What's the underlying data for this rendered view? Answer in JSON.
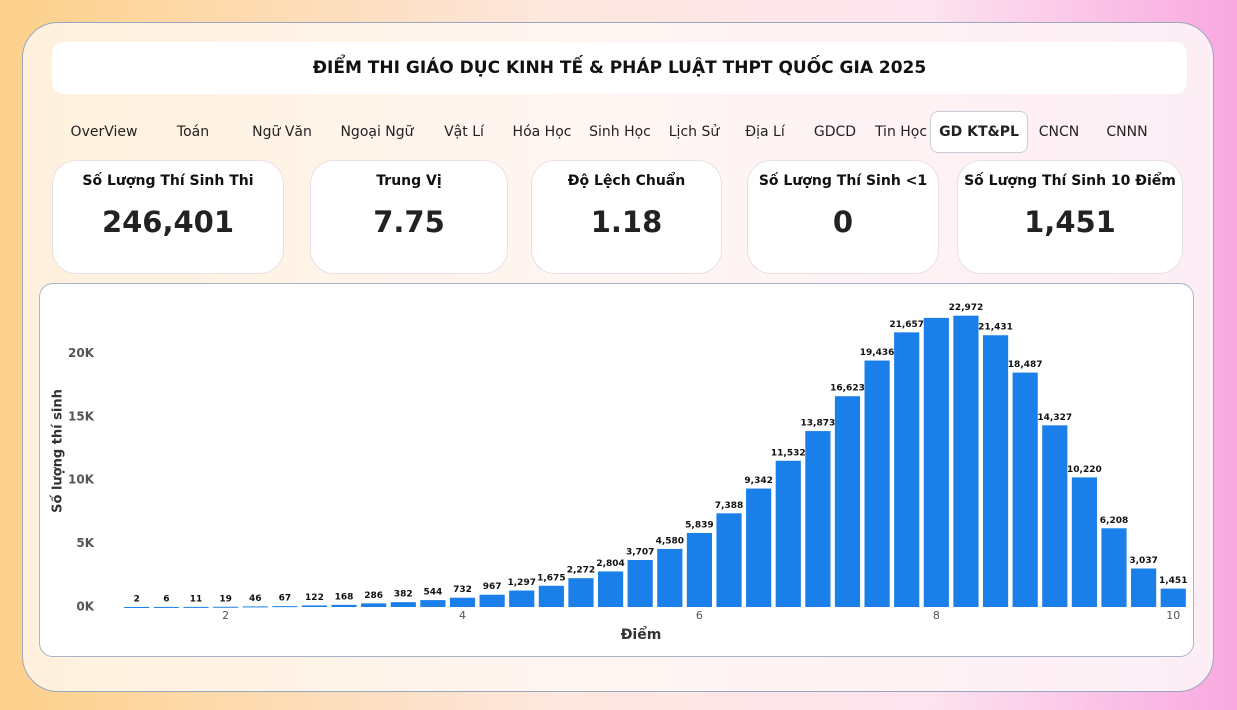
{
  "header": {
    "title": "ĐIỂM THI GIÁO DỤC KINH TẾ & PHÁP LUẬT THPT QUỐC GIA 2025"
  },
  "tabs": {
    "items": [
      "OverView",
      "Toán",
      "Ngữ Văn",
      "Ngoại Ngữ",
      "Vật Lí",
      "Hóa Học",
      "Sinh Học",
      "Lịch Sử",
      "Địa Lí",
      "GDCD",
      "Tin Học",
      "GD KT&PL",
      "CNCN",
      "CNNN"
    ],
    "active": "GD KT&PL"
  },
  "cards": [
    {
      "label": "Số Lượng Thí Sinh Thi",
      "value": "246,401"
    },
    {
      "label": "Trung Vị",
      "value": "7.75"
    },
    {
      "label": "Độ Lệch Chuẩn",
      "value": "1.18"
    },
    {
      "label": "Số Lượng Thí Sinh <1",
      "value": "0"
    },
    {
      "label": "Số Lượng Thí Sinh 10 Điểm",
      "value": "1,451"
    }
  ],
  "chart_data": {
    "type": "bar",
    "x_label": "Điểm",
    "y_label": "Số lượng thí sinh",
    "color": "#1a7fe8",
    "x": [
      1.25,
      1.5,
      1.75,
      2,
      2.25,
      2.5,
      2.75,
      3,
      3.25,
      3.5,
      3.75,
      4,
      4.25,
      4.5,
      4.75,
      5,
      5.25,
      5.5,
      5.75,
      6,
      6.25,
      6.5,
      6.75,
      7,
      7.25,
      7.5,
      7.75,
      8,
      8.25,
      8.5,
      8.75,
      9,
      9.25,
      9.5,
      9.75,
      10
    ],
    "values": [
      2,
      6,
      11,
      19,
      46,
      67,
      122,
      168,
      286,
      382,
      544,
      732,
      967,
      1297,
      1675,
      2272,
      2804,
      3707,
      4580,
      5839,
      7388,
      9342,
      11532,
      13873,
      16623,
      19436,
      21657,
      22800,
      22972,
      21431,
      18487,
      14327,
      10220,
      6208,
      3037,
      1451
    ],
    "value_labels": [
      "2",
      "6",
      "11",
      "19",
      "46",
      "67",
      "122",
      "168",
      "286",
      "382",
      "544",
      "732",
      "967",
      "1,297",
      "1,675",
      "2,272",
      "2,804",
      "3,707",
      "4,580",
      "5,839",
      "7,388",
      "9,342",
      "11,532",
      "13,873",
      "16,623",
      "19,436",
      "21,657",
      null,
      "22,972",
      "21,431",
      "18,487",
      "14,327",
      "10,220",
      "6,208",
      "3,037",
      "1,451"
    ],
    "xlim": [
      1.1,
      10.15
    ],
    "xticks": [
      2,
      4,
      6,
      8,
      10
    ],
    "ylim": [
      0,
      23500
    ],
    "yticks": [
      {
        "value": 0,
        "label": "0K"
      },
      {
        "value": 5000,
        "label": "5K"
      },
      {
        "value": 10000,
        "label": "10K"
      },
      {
        "value": 15000,
        "label": "15K"
      },
      {
        "value": 20000,
        "label": "20K"
      }
    ]
  }
}
